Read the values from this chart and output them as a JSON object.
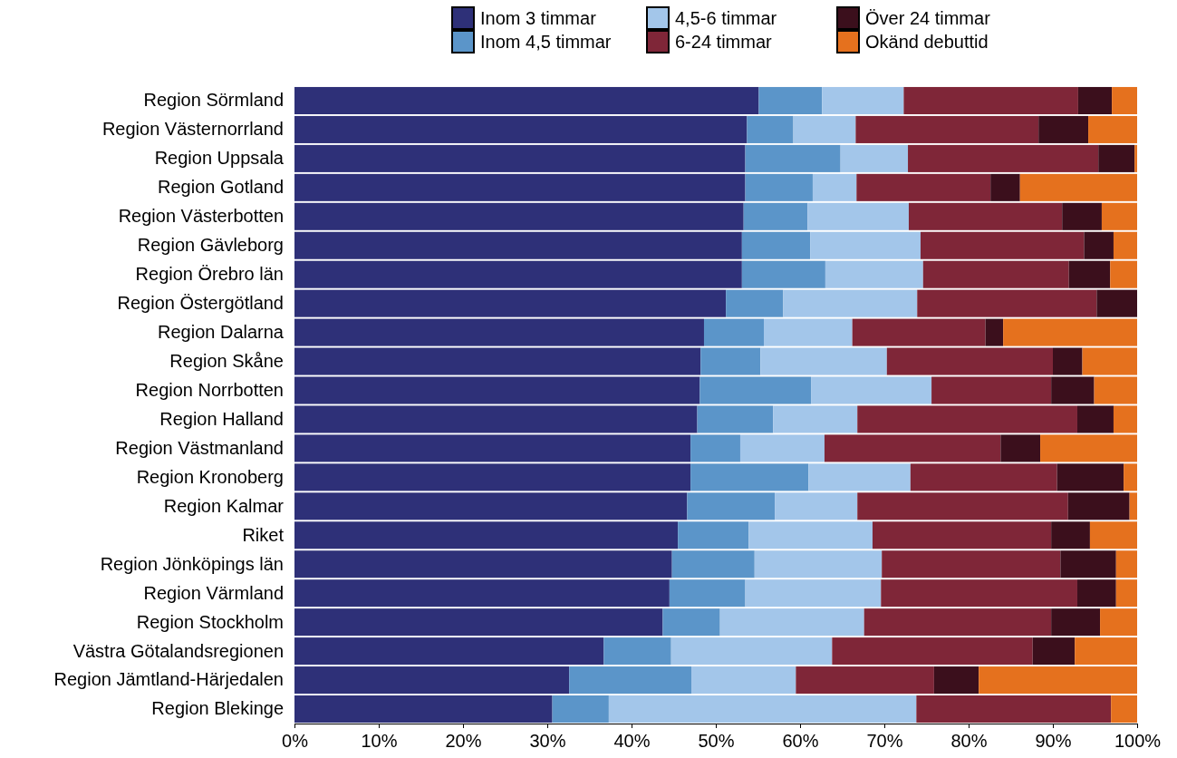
{
  "chart_data": {
    "type": "bar",
    "orientation": "horizontal",
    "stacked": true,
    "legend": "top",
    "grid": false,
    "categories": [
      "Region Sörmland",
      "Region Västernorrland",
      "Region Uppsala",
      "Region Gotland",
      "Region Västerbotten",
      "Region Gävleborg",
      "Region Örebro län",
      "Region Östergötland",
      "Region Dalarna",
      "Region Skåne",
      "Region Norrbotten",
      "Region Halland",
      "Region Västmanland",
      "Region Kronoberg",
      "Region Kalmar",
      "Riket",
      "Region Jönköpings län",
      "Region Värmland",
      "Region Stockholm",
      "Västra Götalandsregionen",
      "Region Jämtland-Härjedalen",
      "Region Blekinge"
    ],
    "xlim": [
      0,
      100
    ],
    "xticks": [
      {
        "value": 0,
        "label": "0%"
      },
      {
        "value": 10,
        "label": "10%"
      },
      {
        "value": 20,
        "label": "20%"
      },
      {
        "value": 30,
        "label": "30%"
      },
      {
        "value": 40,
        "label": "40%"
      },
      {
        "value": 50,
        "label": "50%"
      },
      {
        "value": 60,
        "label": "60%"
      },
      {
        "value": 70,
        "label": "70%"
      },
      {
        "value": 80,
        "label": "80%"
      },
      {
        "value": 90,
        "label": "90%"
      },
      {
        "value": 100,
        "label": "100%"
      }
    ],
    "series": [
      {
        "name": "Inom 3 timmar",
        "color": "#2e3078",
        "values": [
          55.1,
          53.7,
          53.5,
          53.5,
          53.3,
          53.1,
          53.1,
          51.2,
          48.6,
          48.2,
          48.1,
          47.8,
          47.0,
          47.0,
          46.6,
          45.5,
          44.8,
          44.5,
          43.7,
          36.7,
          32.6,
          30.6
        ]
      },
      {
        "name": "Inom 4,5 timmar",
        "color": "#5b95c9",
        "values": [
          7.5,
          5.5,
          11.3,
          8.0,
          7.6,
          8.1,
          9.9,
          6.8,
          7.1,
          7.1,
          13.2,
          9.0,
          5.9,
          14.0,
          10.4,
          8.4,
          9.8,
          9.0,
          6.8,
          8.0,
          14.5,
          6.7
        ]
      },
      {
        "name": "4,5-6 timmar",
        "color": "#a3c6ea",
        "values": [
          9.7,
          7.4,
          8.0,
          5.2,
          12.0,
          13.1,
          11.6,
          15.9,
          10.5,
          15.0,
          14.3,
          10.0,
          10.0,
          12.1,
          9.8,
          14.7,
          15.1,
          16.1,
          17.1,
          19.1,
          12.4,
          36.5
        ]
      },
      {
        "name": "6-24 timmar",
        "color": "#7f2638",
        "values": [
          20.7,
          21.7,
          22.6,
          15.9,
          18.2,
          19.4,
          17.3,
          21.3,
          15.8,
          19.7,
          14.2,
          26.1,
          20.9,
          17.4,
          25.0,
          21.2,
          21.2,
          23.3,
          22.2,
          23.8,
          16.4,
          23.1
        ]
      },
      {
        "name": "Över 24 timmar",
        "color": "#3b0f1c",
        "values": [
          4.0,
          5.9,
          4.3,
          3.5,
          4.7,
          3.5,
          4.9,
          4.8,
          2.1,
          3.5,
          5.1,
          4.3,
          4.7,
          7.9,
          7.3,
          4.6,
          6.6,
          4.6,
          5.8,
          5.0,
          5.3,
          0
        ]
      },
      {
        "name": "Okänd debuttid",
        "color": "#e5711e",
        "values": [
          3.0,
          5.8,
          0.3,
          13.9,
          4.2,
          2.8,
          3.2,
          0,
          15.9,
          6.5,
          5.1,
          2.8,
          11.5,
          1.6,
          0.9,
          5.6,
          2.5,
          2.5,
          4.4,
          7.4,
          18.8,
          3.1
        ]
      }
    ]
  }
}
